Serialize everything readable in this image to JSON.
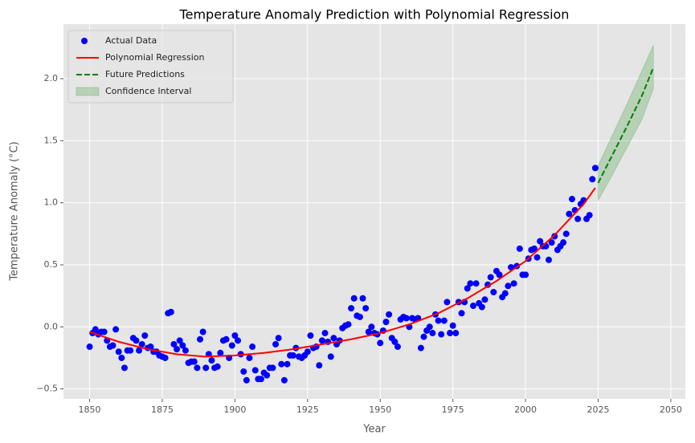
{
  "chart_data": {
    "type": "scatter",
    "title": "Temperature Anomaly Prediction with Polynomial Regression",
    "xlabel": "Year",
    "ylabel": "Temperature Anomaly (°C)",
    "xlim": [
      1841,
      2055
    ],
    "ylim": [
      -0.58,
      2.44
    ],
    "xticks": [
      1850,
      1875,
      1900,
      1925,
      1950,
      1975,
      2000,
      2025,
      2050
    ],
    "yticks": [
      {
        "value": -0.5,
        "label": "−0.5"
      },
      {
        "value": 0,
        "label": "0.0"
      },
      0.5,
      {
        "value": 1,
        "label": "1.0"
      },
      1.5,
      {
        "value": 2,
        "label": "2.0"
      }
    ],
    "grid": true,
    "legend": "upper left",
    "series": [
      {
        "name": "Actual Data",
        "type": "scatter",
        "color": "#0000ff",
        "x": [
          1850,
          1851,
          1852,
          1853,
          1854,
          1855,
          1856,
          1857,
          1858,
          1859,
          1860,
          1861,
          1862,
          1863,
          1864,
          1865,
          1866,
          1867,
          1868,
          1869,
          1870,
          1871,
          1872,
          1873,
          1874,
          1875,
          1876,
          1877,
          1878,
          1879,
          1880,
          1881,
          1882,
          1883,
          1884,
          1885,
          1886,
          1887,
          1888,
          1889,
          1890,
          1891,
          1892,
          1893,
          1894,
          1895,
          1896,
          1897,
          1898,
          1899,
          1900,
          1901,
          1902,
          1903,
          1904,
          1905,
          1906,
          1907,
          1908,
          1909,
          1910,
          1911,
          1912,
          1913,
          1914,
          1915,
          1916,
          1917,
          1918,
          1919,
          1920,
          1921,
          1922,
          1923,
          1924,
          1925,
          1926,
          1927,
          1928,
          1929,
          1930,
          1931,
          1932,
          1933,
          1934,
          1935,
          1936,
          1937,
          1938,
          1939,
          1940,
          1941,
          1942,
          1943,
          1944,
          1945,
          1946,
          1947,
          1948,
          1949,
          1950,
          1951,
          1952,
          1953,
          1954,
          1955,
          1956,
          1957,
          1958,
          1959,
          1960,
          1961,
          1962,
          1963,
          1964,
          1965,
          1966,
          1967,
          1968,
          1969,
          1970,
          1971,
          1972,
          1973,
          1974,
          1975,
          1976,
          1977,
          1978,
          1979,
          1980,
          1981,
          1982,
          1983,
          1984,
          1985,
          1986,
          1987,
          1988,
          1989,
          1990,
          1991,
          1992,
          1993,
          1994,
          1995,
          1996,
          1997,
          1998,
          1999,
          2000,
          2001,
          2002,
          2003,
          2004,
          2005,
          2006,
          2007,
          2008,
          2009,
          2010,
          2011,
          2012,
          2013,
          2014,
          2015,
          2016,
          2017,
          2018,
          2019,
          2020,
          2021,
          2022,
          2023,
          2024
        ],
        "values": [
          -0.16,
          -0.05,
          -0.02,
          -0.06,
          -0.04,
          -0.04,
          -0.11,
          -0.16,
          -0.15,
          -0.02,
          -0.2,
          -0.25,
          -0.33,
          -0.19,
          -0.19,
          -0.09,
          -0.11,
          -0.19,
          -0.14,
          -0.07,
          -0.17,
          -0.16,
          -0.2,
          -0.2,
          -0.23,
          -0.24,
          -0.25,
          0.11,
          0.12,
          -0.14,
          -0.18,
          -0.11,
          -0.15,
          -0.19,
          -0.29,
          -0.28,
          -0.28,
          -0.33,
          -0.1,
          -0.04,
          -0.33,
          -0.22,
          -0.27,
          -0.33,
          -0.32,
          -0.21,
          -0.11,
          -0.1,
          -0.25,
          -0.15,
          -0.07,
          -0.11,
          -0.22,
          -0.36,
          -0.43,
          -0.25,
          -0.16,
          -0.35,
          -0.42,
          -0.42,
          -0.37,
          -0.39,
          -0.33,
          -0.33,
          -0.14,
          -0.09,
          -0.3,
          -0.43,
          -0.3,
          -0.23,
          -0.23,
          -0.17,
          -0.24,
          -0.25,
          -0.23,
          -0.2,
          -0.07,
          -0.17,
          -0.16,
          -0.31,
          -0.11,
          -0.05,
          -0.12,
          -0.24,
          -0.09,
          -0.14,
          -0.11,
          -0.01,
          0.01,
          0.02,
          0.15,
          0.23,
          0.09,
          0.08,
          0.23,
          0.15,
          -0.04,
          0,
          -0.05,
          -0.06,
          -0.13,
          -0.03,
          0.04,
          0.1,
          -0.09,
          -0.12,
          -0.16,
          0.06,
          0.08,
          0.07,
          0,
          0.07,
          0.06,
          0.07,
          -0.17,
          -0.08,
          -0.03,
          0,
          -0.05,
          0.1,
          0.05,
          -0.06,
          0.05,
          0.2,
          -0.05,
          0.01,
          -0.05,
          0.2,
          0.11,
          0.2,
          0.31,
          0.35,
          0.17,
          0.35,
          0.19,
          0.16,
          0.22,
          0.34,
          0.4,
          0.28,
          0.45,
          0.42,
          0.24,
          0.27,
          0.33,
          0.48,
          0.35,
          0.49,
          0.63,
          0.42,
          0.42,
          0.55,
          0.62,
          0.63,
          0.56,
          0.69,
          0.65,
          0.65,
          0.54,
          0.68,
          0.73,
          0.62,
          0.65,
          0.68,
          0.75,
          0.91,
          1.03,
          0.94,
          0.87,
          0.99,
          1.02,
          0.87,
          0.9,
          1.19,
          1.28
        ]
      },
      {
        "name": "Polynomial Regression",
        "type": "line",
        "color": "#ff0000",
        "x": [
          1850,
          1860,
          1870,
          1880,
          1890,
          1900,
          1910,
          1920,
          1930,
          1940,
          1950,
          1960,
          1970,
          1980,
          1990,
          2000,
          2010,
          2020,
          2024
        ],
        "values": [
          -0.04,
          -0.12,
          -0.18,
          -0.22,
          -0.24,
          -0.23,
          -0.21,
          -0.18,
          -0.14,
          -0.1,
          -0.05,
          0.02,
          0.11,
          0.23,
          0.37,
          0.53,
          0.74,
          0.99,
          1.12
        ]
      },
      {
        "name": "Future Predictions",
        "type": "line",
        "dashed": true,
        "color": "#008000",
        "x": [
          2025,
          2030,
          2035,
          2040,
          2044
        ],
        "values": [
          1.16,
          1.39,
          1.62,
          1.86,
          2.09
        ]
      },
      {
        "name": "Confidence Interval",
        "type": "band",
        "color": "#008000",
        "x": [
          2025,
          2030,
          2035,
          2040,
          2044
        ],
        "lower": [
          1.02,
          1.23,
          1.45,
          1.67,
          1.92
        ],
        "upper": [
          1.3,
          1.55,
          1.8,
          2.06,
          2.27
        ]
      }
    ]
  }
}
